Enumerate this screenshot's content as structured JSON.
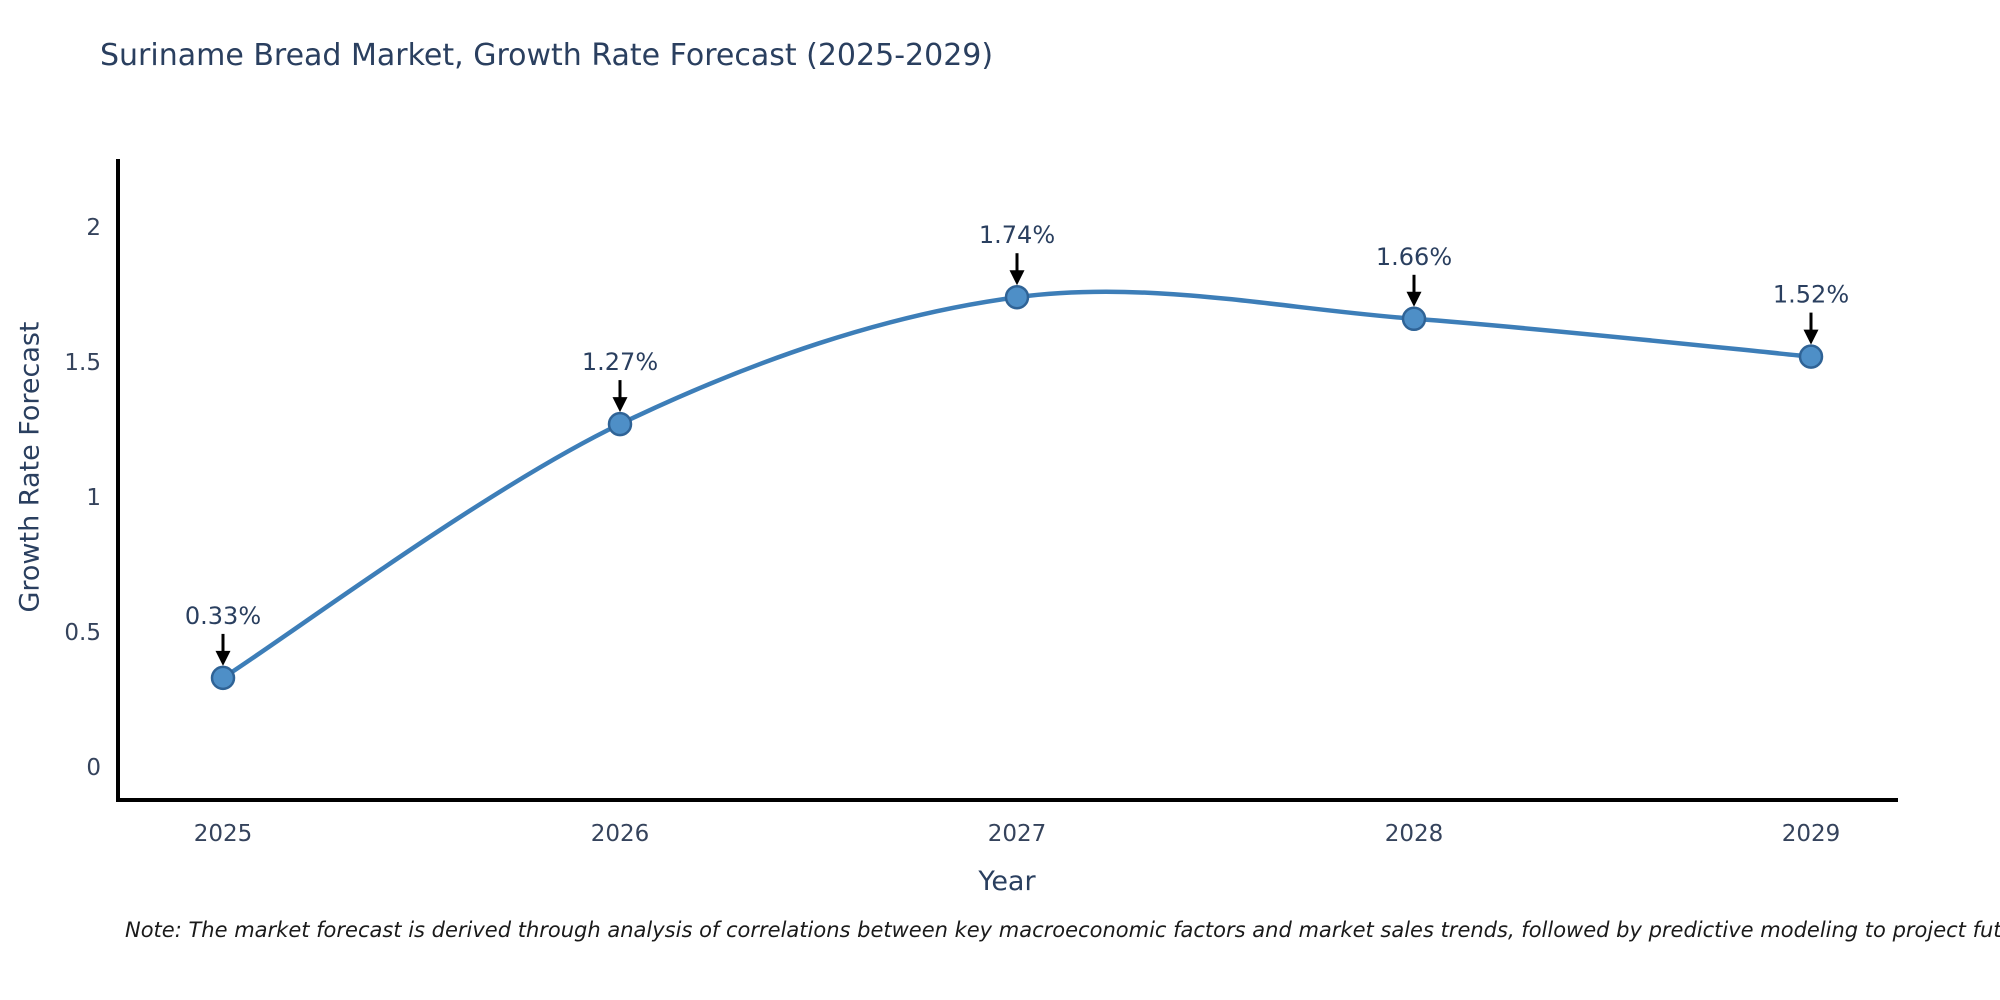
{
  "chart_data": {
    "type": "line",
    "title": "Suriname Bread Market, Growth Rate Forecast (2025-2029)",
    "xlabel": "Year",
    "ylabel": "Growth Rate Forecast",
    "x": [
      2025,
      2026,
      2027,
      2028,
      2029
    ],
    "values": [
      0.33,
      1.27,
      1.74,
      1.66,
      1.52
    ],
    "point_labels": [
      "0.33%",
      "1.27%",
      "1.74%",
      "1.66%",
      "1.52%"
    ],
    "y_ticks": [
      0,
      0.5,
      1,
      1.5,
      2
    ],
    "ylim": [
      -0.12,
      2.25
    ],
    "grid": false,
    "legend": "none",
    "curve": "spline",
    "colors": {
      "line": "#3d7eb8",
      "marker_fill": "#4e8fc7",
      "marker_stroke": "#2f6396",
      "axis": "#000000",
      "annotation_arrow": "#000000",
      "text": "#2a3f5f"
    }
  },
  "note": "Note: The market forecast is derived through analysis of correlations between key macroeconomic factors and market sales trends, followed by predictive modeling to project future sales"
}
